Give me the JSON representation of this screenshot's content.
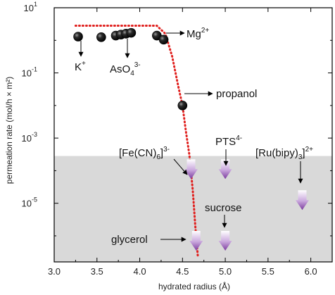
{
  "chart_data": {
    "type": "scatter",
    "xlabel": "hydrated radius (Å)",
    "ylabel": "permeation rate (mol/h × m²)",
    "xlim": [
      3.0,
      6.25
    ],
    "ylim_log10": [
      -6.8,
      1
    ],
    "yscale": "log",
    "xticks": [
      "3.0",
      "3.5",
      "4.0",
      "4.5",
      "5.0",
      "5.5",
      "6.0"
    ],
    "yticks": [
      {
        "base": "10",
        "exp": "1",
        "log": 1
      },
      {
        "base": "10",
        "exp": "-1",
        "log": -1
      },
      {
        "base": "10",
        "exp": "-3",
        "log": -3
      },
      {
        "base": "10",
        "exp": "-5",
        "log": -5
      }
    ],
    "detection_limit_log10": -3.55,
    "measured_points": [
      {
        "x": 3.28,
        "y": 1.3
      },
      {
        "x": 3.55,
        "y": 1.25
      },
      {
        "x": 3.72,
        "y": 1.4
      },
      {
        "x": 3.78,
        "y": 1.5
      },
      {
        "x": 3.84,
        "y": 1.6
      },
      {
        "x": 3.9,
        "y": 1.7
      },
      {
        "x": 4.2,
        "y": 1.4
      },
      {
        "x": 4.28,
        "y": 1.05
      },
      {
        "x": 4.5,
        "y": 0.01
      }
    ],
    "below_limit": [
      {
        "x": 4.6,
        "top_log10": -3.65
      },
      {
        "x": 5.0,
        "top_log10": -3.65
      },
      {
        "x": 5.9,
        "top_log10": -4.6
      },
      {
        "x": 4.66,
        "top_log10": -5.85
      },
      {
        "x": 5.0,
        "top_log10": -5.85
      }
    ],
    "fit_curve": [
      [
        3.25,
        0.45
      ],
      [
        4.2,
        0.45
      ],
      [
        4.3,
        0.2
      ],
      [
        4.38,
        -0.5
      ],
      [
        4.45,
        -1.4
      ],
      [
        4.5,
        -2.0
      ],
      [
        4.54,
        -2.8
      ],
      [
        4.58,
        -3.5
      ],
      [
        4.62,
        -4.6
      ],
      [
        4.65,
        -5.7
      ],
      [
        4.68,
        -6.65
      ]
    ],
    "colors": {
      "fit": "#e0201e",
      "band": "#d9d9d9",
      "arrow_top": "#ffffff",
      "arrow_bottom": "#7a3a9e",
      "point": "#111111"
    }
  },
  "annotations": {
    "k": "K",
    "k_sup": "+",
    "aso4": "AsO",
    "aso4_sub": "4",
    "aso4_sup": "3-",
    "mg": "Mg",
    "mg_sup": "2+",
    "propanol": "propanol",
    "fecn": "[Fe(CN)",
    "fecn_sub": "6",
    "fecn_close": "]",
    "fecn_sup": "3-",
    "pts": "PTS",
    "pts_sup": "4-",
    "rubipy": "[Ru(bipy)",
    "rubipy_sub": "3",
    "rubipy_close": "]",
    "rubipy_sup": "2+",
    "sucrose": "sucrose",
    "glycerol": "glycerol"
  }
}
